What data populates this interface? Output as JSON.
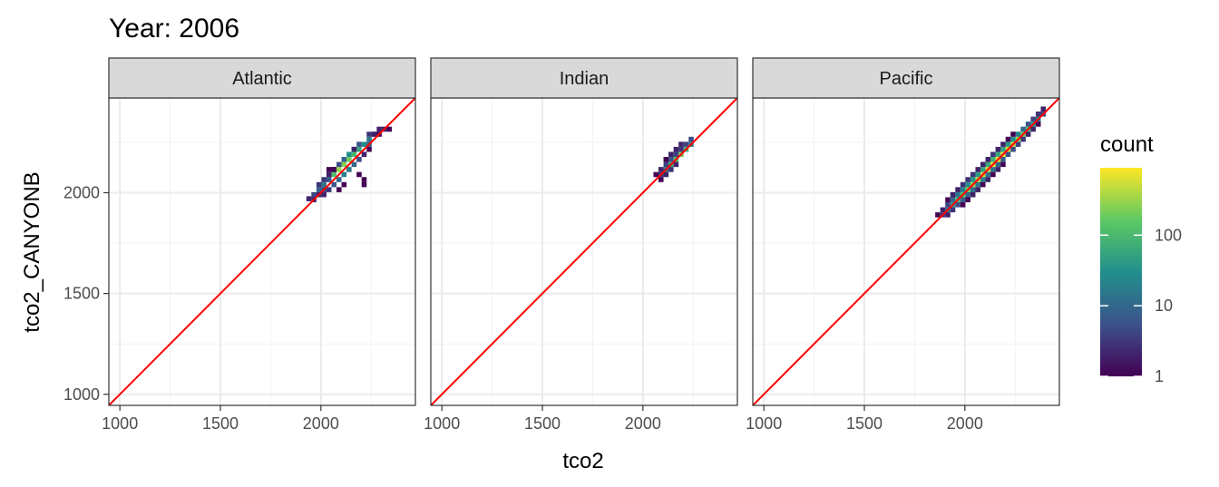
{
  "chart_data": {
    "type": "heatmap",
    "title": "Year: 2006",
    "xlabel": "tco2",
    "ylabel": "tco2_CANYONB",
    "xlim": [
      945,
      2470
    ],
    "ylim": [
      945,
      2470
    ],
    "x_ticks": [
      1000,
      1500,
      2000
    ],
    "y_ticks": [
      1000,
      1500,
      2000
    ],
    "x_tick_labels": [
      "1000",
      "1500",
      "2000"
    ],
    "y_tick_labels": [
      "1000",
      "1500",
      "2000"
    ],
    "grid": true,
    "reference_line": {
      "slope": 1,
      "intercept": 0,
      "color": "#ff0000"
    },
    "legend": {
      "title": "count",
      "position": "right",
      "scale": "log10",
      "range": [
        1,
        900
      ],
      "breaks": [
        1,
        10,
        100
      ],
      "labels": [
        "1",
        "10",
        "100"
      ]
    },
    "colors": [
      "#440154",
      "#3b528b",
      "#21908c",
      "#5dc963",
      "#fde725"
    ],
    "bin_size": 25,
    "panels": [
      {
        "name": "Atlantic",
        "bins": [
          [
            1940,
            1970,
            2
          ],
          [
            1965,
            1990,
            4
          ],
          [
            1990,
            2015,
            8
          ],
          [
            2015,
            2040,
            15
          ],
          [
            2040,
            2065,
            40
          ],
          [
            2065,
            2090,
            120
          ],
          [
            2090,
            2115,
            300
          ],
          [
            2115,
            2140,
            250
          ],
          [
            2140,
            2165,
            200
          ],
          [
            2165,
            2190,
            100
          ],
          [
            2190,
            2215,
            60
          ],
          [
            2215,
            2240,
            30
          ],
          [
            2240,
            2265,
            15
          ],
          [
            2265,
            2290,
            5
          ],
          [
            2290,
            2315,
            2
          ],
          [
            2315,
            2315,
            2
          ],
          [
            1990,
            2040,
            3
          ],
          [
            2015,
            2065,
            3
          ],
          [
            2040,
            2065,
            6
          ],
          [
            2040,
            2090,
            2
          ],
          [
            2065,
            2115,
            4
          ],
          [
            2090,
            2140,
            5
          ],
          [
            2115,
            2165,
            8
          ],
          [
            2140,
            2190,
            30
          ],
          [
            2165,
            2215,
            15
          ],
          [
            2190,
            2240,
            6
          ],
          [
            2240,
            2290,
            3
          ],
          [
            2265,
            2290,
            2
          ],
          [
            2290,
            2290,
            1
          ],
          [
            2340,
            2315,
            1
          ],
          [
            1990,
            1990,
            2
          ],
          [
            2040,
            2015,
            3
          ],
          [
            2065,
            2040,
            6
          ],
          [
            2090,
            2065,
            10
          ],
          [
            2115,
            2090,
            20
          ],
          [
            2140,
            2115,
            15
          ],
          [
            2165,
            2140,
            10
          ],
          [
            2190,
            2165,
            5
          ],
          [
            2215,
            2190,
            2
          ],
          [
            2240,
            2215,
            1
          ],
          [
            1965,
            1965,
            2
          ],
          [
            2015,
            1990,
            2
          ],
          [
            2015,
            2015,
            4
          ],
          [
            2040,
            2115,
            1
          ],
          [
            2065,
            2115,
            1
          ],
          [
            2190,
            2090,
            1
          ],
          [
            2215,
            2065,
            1
          ],
          [
            2215,
            2040,
            1
          ],
          [
            2165,
            2215,
            2
          ],
          [
            2090,
            2015,
            1
          ],
          [
            2115,
            2040,
            1
          ],
          [
            2240,
            2240,
            8
          ]
        ]
      },
      {
        "name": "Indian",
        "bins": [
          [
            2065,
            2090,
            1
          ],
          [
            2090,
            2090,
            3
          ],
          [
            2115,
            2115,
            15
          ],
          [
            2140,
            2140,
            60
          ],
          [
            2165,
            2165,
            120
          ],
          [
            2190,
            2190,
            200
          ],
          [
            2215,
            2215,
            80
          ],
          [
            2240,
            2240,
            20
          ],
          [
            2240,
            2265,
            5
          ],
          [
            2090,
            2115,
            2
          ],
          [
            2115,
            2140,
            4
          ],
          [
            2140,
            2165,
            6
          ],
          [
            2165,
            2190,
            4
          ],
          [
            2190,
            2215,
            3
          ],
          [
            2140,
            2190,
            2
          ],
          [
            2165,
            2215,
            2
          ],
          [
            2115,
            2165,
            1
          ],
          [
            2190,
            2240,
            2
          ],
          [
            2215,
            2240,
            4
          ],
          [
            2115,
            2090,
            2
          ],
          [
            2140,
            2115,
            3
          ],
          [
            2165,
            2140,
            2
          ],
          [
            2090,
            2065,
            1
          ]
        ]
      },
      {
        "name": "Pacific",
        "bins": [
          [
            1865,
            1890,
            1
          ],
          [
            1890,
            1890,
            3
          ],
          [
            1915,
            1915,
            12
          ],
          [
            1940,
            1940,
            40
          ],
          [
            1965,
            1965,
            90
          ],
          [
            1990,
            1990,
            150
          ],
          [
            2015,
            2015,
            200
          ],
          [
            2040,
            2040,
            300
          ],
          [
            2065,
            2065,
            400
          ],
          [
            2090,
            2090,
            500
          ],
          [
            2115,
            2115,
            600
          ],
          [
            2140,
            2140,
            700
          ],
          [
            2165,
            2165,
            800
          ],
          [
            2190,
            2190,
            700
          ],
          [
            2215,
            2215,
            600
          ],
          [
            2240,
            2240,
            500
          ],
          [
            2265,
            2265,
            300
          ],
          [
            2290,
            2290,
            200
          ],
          [
            2315,
            2315,
            100
          ],
          [
            2340,
            2340,
            40
          ],
          [
            2365,
            2365,
            15
          ],
          [
            2390,
            2390,
            4
          ],
          [
            1890,
            1915,
            2
          ],
          [
            1915,
            1940,
            4
          ],
          [
            1940,
            1965,
            10
          ],
          [
            1965,
            1990,
            15
          ],
          [
            1990,
            2015,
            20
          ],
          [
            2015,
            2040,
            30
          ],
          [
            2040,
            2065,
            35
          ],
          [
            2065,
            2090,
            40
          ],
          [
            2090,
            2115,
            50
          ],
          [
            2115,
            2140,
            60
          ],
          [
            2140,
            2165,
            70
          ],
          [
            2165,
            2190,
            60
          ],
          [
            2190,
            2215,
            50
          ],
          [
            2215,
            2240,
            40
          ],
          [
            2240,
            2265,
            30
          ],
          [
            2265,
            2290,
            20
          ],
          [
            2290,
            2315,
            10
          ],
          [
            2315,
            2340,
            6
          ],
          [
            2340,
            2365,
            4
          ],
          [
            2365,
            2390,
            3
          ],
          [
            2390,
            2415,
            2
          ],
          [
            1915,
            1890,
            2
          ],
          [
            1940,
            1915,
            3
          ],
          [
            1965,
            1940,
            5
          ],
          [
            1990,
            1965,
            8
          ],
          [
            2015,
            1990,
            10
          ],
          [
            2040,
            2015,
            12
          ],
          [
            2065,
            2040,
            15
          ],
          [
            2090,
            2065,
            18
          ],
          [
            2115,
            2090,
            15
          ],
          [
            2140,
            2115,
            12
          ],
          [
            2165,
            2140,
            10
          ],
          [
            2190,
            2165,
            8
          ],
          [
            2215,
            2190,
            6
          ],
          [
            2240,
            2215,
            5
          ],
          [
            2265,
            2240,
            4
          ],
          [
            2290,
            2265,
            3
          ],
          [
            2315,
            2290,
            2
          ],
          [
            2340,
            2315,
            2
          ],
          [
            2365,
            2340,
            1
          ],
          [
            1915,
            1965,
            1
          ],
          [
            1940,
            1990,
            2
          ],
          [
            1965,
            2015,
            2
          ],
          [
            1990,
            2040,
            3
          ],
          [
            2015,
            2065,
            3
          ],
          [
            2040,
            2090,
            3
          ],
          [
            2065,
            2115,
            2
          ],
          [
            2090,
            2140,
            2
          ],
          [
            2115,
            2165,
            2
          ],
          [
            2140,
            2190,
            3
          ],
          [
            2165,
            2215,
            2
          ],
          [
            2190,
            2240,
            2
          ],
          [
            2215,
            2265,
            1
          ],
          [
            2240,
            2290,
            1
          ],
          [
            2040,
            1990,
            2
          ],
          [
            2065,
            2015,
            2
          ],
          [
            2090,
            2040,
            1
          ],
          [
            2115,
            2065,
            2
          ],
          [
            2140,
            2090,
            1
          ],
          [
            2015,
            1965,
            1
          ],
          [
            1990,
            1940,
            1
          ],
          [
            2165,
            2115,
            2
          ],
          [
            2190,
            2140,
            1
          ]
        ]
      }
    ]
  }
}
